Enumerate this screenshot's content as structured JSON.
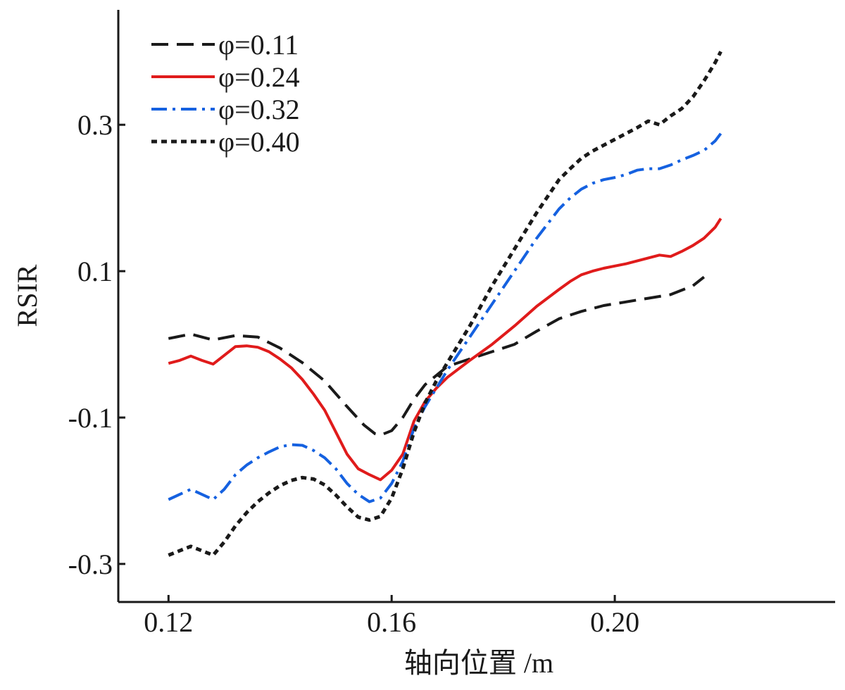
{
  "chart_data": {
    "type": "line",
    "xlabel": "轴向位置 /m",
    "ylabel": "RSIR",
    "xlim": [
      0.111,
      0.2395
    ],
    "ylim": [
      -0.352,
      0.457
    ],
    "xticks": [
      {
        "value": 0.12,
        "label": "0.12"
      },
      {
        "value": 0.16,
        "label": "0.16"
      },
      {
        "value": 0.2,
        "label": "0.20"
      }
    ],
    "yticks": [
      {
        "value": -0.3,
        "label": "-0.3"
      },
      {
        "value": -0.1,
        "label": "-0.1"
      },
      {
        "value": 0.1,
        "label": "0.1"
      },
      {
        "value": 0.3,
        "label": "0.3"
      }
    ],
    "grid": false,
    "legend_position": "top-left",
    "series": [
      {
        "name": "φ=0.11",
        "color": "#1a1a1a",
        "dash": "24,12",
        "width": 4,
        "x": [
          0.12,
          0.124,
          0.128,
          0.132,
          0.136,
          0.14,
          0.144,
          0.148,
          0.152,
          0.155,
          0.157,
          0.158,
          0.16,
          0.162,
          0.164,
          0.166,
          0.17,
          0.174,
          0.178,
          0.182,
          0.186,
          0.19,
          0.194,
          0.198,
          0.202,
          0.206,
          0.21,
          0.214,
          0.216
        ],
        "y": [
          0.008,
          0.014,
          0.006,
          0.012,
          0.01,
          -0.005,
          -0.025,
          -0.05,
          -0.085,
          -0.11,
          -0.122,
          -0.124,
          -0.118,
          -0.1,
          -0.075,
          -0.055,
          -0.03,
          -0.02,
          -0.01,
          0.0,
          0.018,
          0.035,
          0.045,
          0.053,
          0.058,
          0.063,
          0.068,
          0.08,
          0.092
        ]
      },
      {
        "name": "φ=0.24",
        "color": "#e01b1b",
        "dash": "",
        "width": 4,
        "x": [
          0.12,
          0.122,
          0.124,
          0.126,
          0.128,
          0.13,
          0.132,
          0.134,
          0.136,
          0.138,
          0.14,
          0.142,
          0.144,
          0.146,
          0.148,
          0.15,
          0.152,
          0.154,
          0.156,
          0.158,
          0.16,
          0.162,
          0.164,
          0.166,
          0.168,
          0.17,
          0.174,
          0.178,
          0.182,
          0.186,
          0.19,
          0.192,
          0.194,
          0.196,
          0.198,
          0.2,
          0.202,
          0.204,
          0.206,
          0.208,
          0.21,
          0.212,
          0.214,
          0.216,
          0.218,
          0.219
        ],
        "y": [
          -0.026,
          -0.022,
          -0.016,
          -0.022,
          -0.027,
          -0.015,
          -0.003,
          -0.002,
          -0.004,
          -0.01,
          -0.02,
          -0.032,
          -0.048,
          -0.068,
          -0.09,
          -0.12,
          -0.15,
          -0.17,
          -0.178,
          -0.185,
          -0.172,
          -0.15,
          -0.105,
          -0.078,
          -0.06,
          -0.045,
          -0.022,
          0.0,
          0.025,
          0.052,
          0.075,
          0.086,
          0.095,
          0.1,
          0.104,
          0.107,
          0.11,
          0.114,
          0.118,
          0.122,
          0.12,
          0.127,
          0.135,
          0.145,
          0.16,
          0.172
        ]
      },
      {
        "name": "φ=0.32",
        "color": "#1561e0",
        "dash": "22,8,4,8",
        "width": 4,
        "x": [
          0.12,
          0.122,
          0.124,
          0.126,
          0.128,
          0.13,
          0.132,
          0.134,
          0.136,
          0.138,
          0.14,
          0.142,
          0.144,
          0.146,
          0.148,
          0.15,
          0.152,
          0.154,
          0.156,
          0.158,
          0.16,
          0.162,
          0.164,
          0.166,
          0.168,
          0.17,
          0.174,
          0.178,
          0.182,
          0.186,
          0.19,
          0.192,
          0.194,
          0.196,
          0.198,
          0.2,
          0.202,
          0.204,
          0.206,
          0.208,
          0.21,
          0.212,
          0.214,
          0.216,
          0.218,
          0.219
        ],
        "y": [
          -0.212,
          -0.205,
          -0.198,
          -0.205,
          -0.212,
          -0.198,
          -0.178,
          -0.165,
          -0.155,
          -0.147,
          -0.14,
          -0.137,
          -0.138,
          -0.145,
          -0.155,
          -0.17,
          -0.19,
          -0.205,
          -0.215,
          -0.21,
          -0.19,
          -0.16,
          -0.115,
          -0.085,
          -0.06,
          -0.035,
          0.01,
          0.055,
          0.1,
          0.145,
          0.185,
          0.2,
          0.212,
          0.22,
          0.225,
          0.228,
          0.232,
          0.238,
          0.24,
          0.24,
          0.245,
          0.252,
          0.258,
          0.265,
          0.278,
          0.288
        ]
      },
      {
        "name": "φ=0.40",
        "color": "#1a1a1a",
        "dash": "8,6",
        "width": 5,
        "x": [
          0.12,
          0.122,
          0.124,
          0.126,
          0.128,
          0.13,
          0.132,
          0.134,
          0.136,
          0.138,
          0.14,
          0.142,
          0.144,
          0.146,
          0.148,
          0.15,
          0.152,
          0.154,
          0.156,
          0.158,
          0.16,
          0.162,
          0.164,
          0.166,
          0.168,
          0.17,
          0.174,
          0.178,
          0.182,
          0.186,
          0.19,
          0.192,
          0.194,
          0.196,
          0.198,
          0.2,
          0.202,
          0.204,
          0.206,
          0.208,
          0.21,
          0.212,
          0.214,
          0.216,
          0.218,
          0.219
        ],
        "y": [
          -0.288,
          -0.282,
          -0.276,
          -0.282,
          -0.288,
          -0.27,
          -0.248,
          -0.23,
          -0.215,
          -0.203,
          -0.193,
          -0.186,
          -0.182,
          -0.184,
          -0.192,
          -0.206,
          -0.222,
          -0.236,
          -0.24,
          -0.235,
          -0.21,
          -0.17,
          -0.12,
          -0.08,
          -0.05,
          -0.025,
          0.025,
          0.08,
          0.13,
          0.18,
          0.225,
          0.24,
          0.254,
          0.264,
          0.272,
          0.28,
          0.288,
          0.296,
          0.305,
          0.3,
          0.312,
          0.322,
          0.338,
          0.36,
          0.385,
          0.4
        ]
      }
    ]
  }
}
